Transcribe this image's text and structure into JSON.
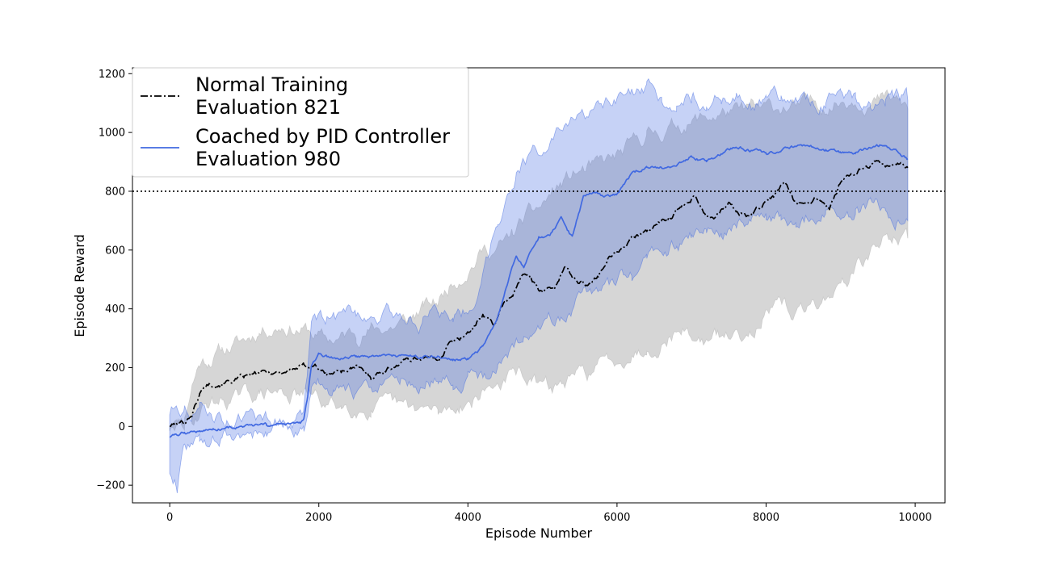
{
  "chart_data": {
    "type": "line",
    "title": "",
    "xlabel": "Episode Number",
    "ylabel": "Episode Reward",
    "xlim": [
      -500,
      10400
    ],
    "ylim": [
      -260,
      1220
    ],
    "xticks": [
      0,
      2000,
      4000,
      6000,
      8000,
      10000
    ],
    "yticks": [
      -200,
      0,
      200,
      400,
      600,
      800,
      1000,
      1200
    ],
    "xtick_labels": [
      "0",
      "2000",
      "4000",
      "6000",
      "8000",
      "10000"
    ],
    "ytick_labels": [
      "−200",
      "0",
      "200",
      "400",
      "600",
      "800",
      "1000",
      "1200"
    ],
    "grid": false,
    "legend_position": "top-left",
    "reference_line": {
      "y": 800,
      "style": "dotted",
      "color": "#000000"
    },
    "series": [
      {
        "name": "Normal Training\nEvaluation 821",
        "legend_lines": [
          "Normal Training",
          "Evaluation 821"
        ],
        "color": "#000000",
        "band_color": "#c8c8c8",
        "line_style": "dashdot",
        "x": [
          0,
          200,
          300,
          400,
          500,
          700,
          1000,
          1200,
          1500,
          1800,
          1950,
          2100,
          2300,
          2500,
          2700,
          3000,
          3200,
          3400,
          3600,
          3750,
          3900,
          4050,
          4200,
          4350,
          4500,
          4600,
          4750,
          4850,
          5000,
          5150,
          5300,
          5450,
          5600,
          5750,
          5900,
          6050,
          6200,
          6400,
          6600,
          6750,
          6900,
          7050,
          7200,
          7350,
          7500,
          7650,
          7800,
          7950,
          8100,
          8250,
          8400,
          8550,
          8700,
          8850,
          9000,
          9150,
          9300,
          9450,
          9600,
          9750,
          9900
        ],
        "mean": [
          3,
          15,
          45,
          110,
          145,
          150,
          165,
          180,
          185,
          205,
          210,
          175,
          190,
          200,
          170,
          205,
          230,
          235,
          230,
          280,
          300,
          330,
          380,
          350,
          420,
          450,
          520,
          500,
          460,
          470,
          540,
          500,
          480,
          520,
          580,
          600,
          640,
          660,
          700,
          720,
          760,
          790,
          720,
          720,
          760,
          720,
          720,
          750,
          780,
          830,
          760,
          760,
          780,
          740,
          830,
          850,
          880,
          900,
          880,
          900,
          880
        ],
        "upper": [
          10,
          40,
          150,
          220,
          230,
          260,
          290,
          330,
          350,
          330,
          310,
          290,
          300,
          320,
          330,
          340,
          360,
          400,
          420,
          480,
          520,
          560,
          600,
          600,
          620,
          650,
          700,
          720,
          750,
          800,
          830,
          860,
          870,
          880,
          900,
          920,
          950,
          990,
          1000,
          1020,
          1030,
          1040,
          1050,
          1060,
          1070,
          1060,
          1080,
          1070,
          1080,
          1090,
          1080,
          1090,
          1100,
          1100,
          1110,
          1120,
          1120,
          1110,
          1110,
          1100,
          1080
        ],
        "lower": [
          -5,
          0,
          10,
          50,
          80,
          90,
          100,
          110,
          115,
          105,
          100,
          70,
          70,
          75,
          60,
          60,
          50,
          55,
          40,
          60,
          80,
          90,
          120,
          140,
          160,
          170,
          180,
          150,
          130,
          130,
          150,
          160,
          180,
          200,
          220,
          240,
          260,
          270,
          300,
          320,
          330,
          300,
          290,
          300,
          300,
          320,
          340,
          380,
          390,
          400,
          380,
          390,
          420,
          450,
          480,
          520,
          560,
          600,
          640,
          650,
          640
        ]
      },
      {
        "name": "Coached by PID Controller\nEvaluation 980",
        "legend_lines": [
          "Coached by PID Controller",
          "Evaluation 980"
        ],
        "color": "#4169e1",
        "band_color": "#4169e1",
        "line_style": "solid",
        "x": [
          0,
          100,
          200,
          400,
          700,
          1000,
          1300,
          1600,
          1750,
          1800,
          1850,
          1900,
          2000,
          2200,
          2500,
          2800,
          3100,
          3400,
          3600,
          3800,
          4000,
          4200,
          4400,
          4550,
          4650,
          4750,
          4850,
          4950,
          5100,
          5250,
          5400,
          5550,
          5700,
          5850,
          6000,
          6200,
          6400,
          6600,
          6800,
          7000,
          7200,
          7400,
          7600,
          7800,
          8000,
          8200,
          8400,
          8600,
          8800,
          9000,
          9200,
          9400,
          9600,
          9750,
          9900
        ],
        "mean": [
          -35,
          -30,
          -20,
          -15,
          -5,
          0,
          2,
          5,
          10,
          25,
          100,
          200,
          240,
          230,
          235,
          240,
          240,
          235,
          240,
          225,
          230,
          270,
          360,
          500,
          580,
          540,
          590,
          640,
          650,
          700,
          640,
          780,
          800,
          780,
          790,
          860,
          880,
          880,
          890,
          920,
          900,
          930,
          950,
          940,
          930,
          940,
          950,
          950,
          940,
          930,
          930,
          950,
          960,
          940,
          910
        ],
        "upper": [
          50,
          90,
          70,
          60,
          30,
          30,
          30,
          30,
          35,
          50,
          180,
          330,
          350,
          380,
          390,
          380,
          380,
          360,
          380,
          380,
          400,
          520,
          700,
          820,
          880,
          900,
          920,
          940,
          960,
          1000,
          1020,
          1050,
          1070,
          1080,
          1100,
          1120,
          1120,
          1110,
          1120,
          1130,
          1110,
          1120,
          1130,
          1110,
          1100,
          1110,
          1120,
          1110,
          1100,
          1110,
          1120,
          1110,
          1100,
          1110,
          1110
        ],
        "lower": [
          -150,
          -190,
          -60,
          -55,
          -35,
          -30,
          -20,
          -15,
          -10,
          0,
          30,
          110,
          140,
          130,
          110,
          130,
          150,
          160,
          170,
          160,
          150,
          170,
          200,
          240,
          280,
          300,
          320,
          340,
          360,
          380,
          380,
          450,
          460,
          470,
          480,
          520,
          560,
          600,
          620,
          640,
          660,
          680,
          690,
          700,
          700,
          710,
          720,
          720,
          720,
          720,
          730,
          740,
          740,
          720,
          700
        ]
      }
    ]
  }
}
